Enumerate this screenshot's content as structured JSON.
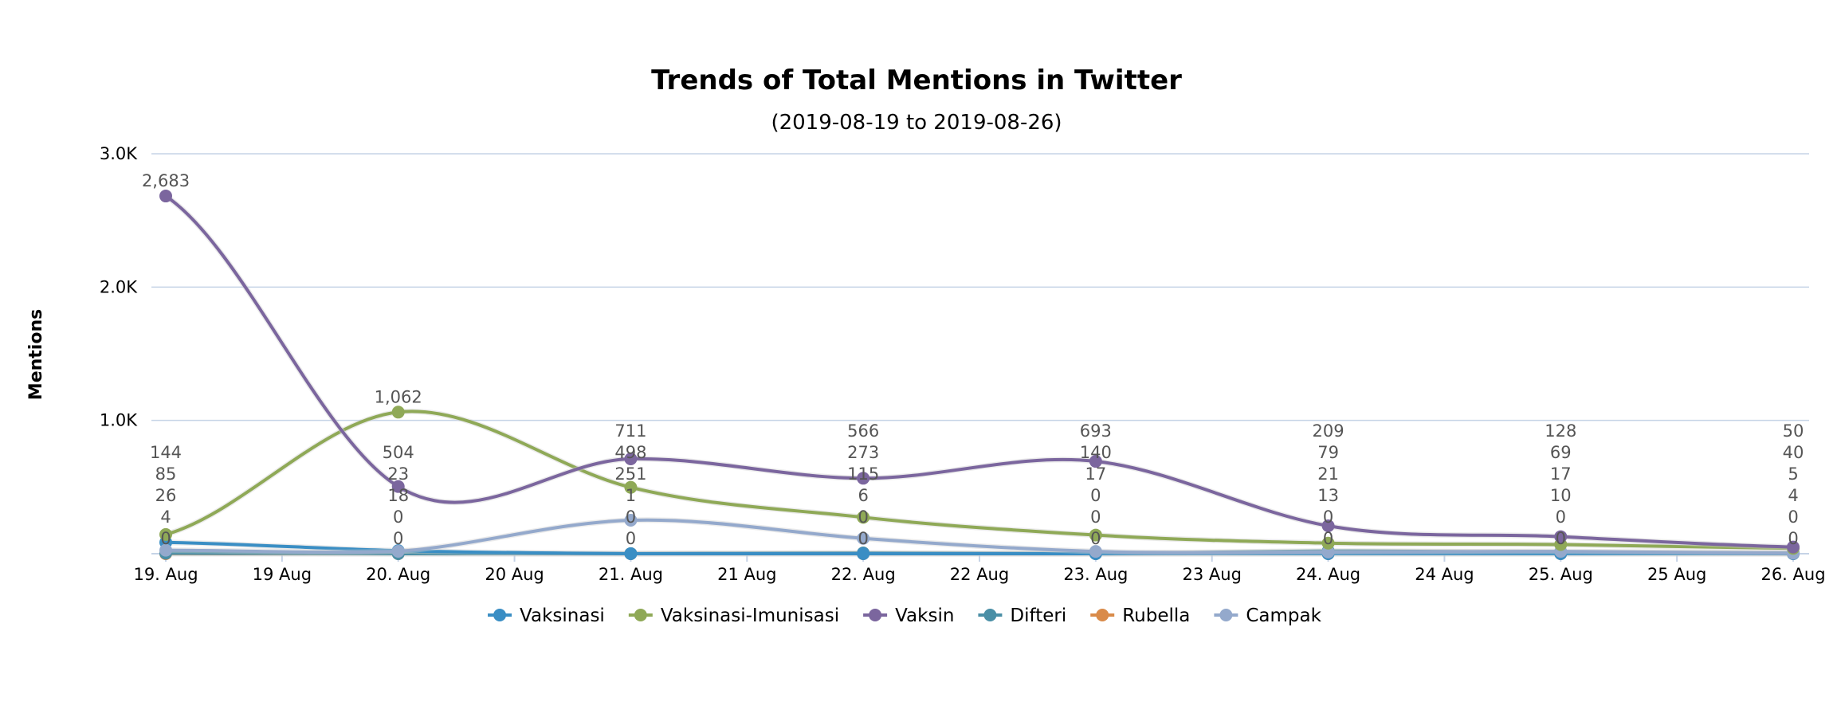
{
  "chart_data": {
    "type": "line",
    "title": "Trends of Total Mentions in Twitter",
    "subtitle": "(2019-08-19 to 2019-08-26)",
    "ylabel": "Mentions",
    "xlabel": "",
    "ylim": [
      0,
      3000
    ],
    "yticks": [
      {
        "value": 1000,
        "label": "1.0K"
      },
      {
        "value": 2000,
        "label": "2.0K"
      },
      {
        "value": 3000,
        "label": "3.0K"
      }
    ],
    "x_tick_labels": [
      "19. Aug",
      "19 Aug",
      "20. Aug",
      "20 Aug",
      "21. Aug",
      "21 Aug",
      "22. Aug",
      "22 Aug",
      "23. Aug",
      "23 Aug",
      "24. Aug",
      "24 Aug",
      "25. Aug",
      "25 Aug",
      "26. Aug"
    ],
    "categories": [
      "19. Aug",
      "20. Aug",
      "21. Aug",
      "22. Aug",
      "23. Aug",
      "24. Aug",
      "25. Aug",
      "26. Aug"
    ],
    "grid": true,
    "legend_position": "bottom-center",
    "series": [
      {
        "name": "Vaksinasi",
        "color": "#3a8ec4",
        "values": [
          85,
          23,
          0,
          0,
          0,
          0,
          0,
          0
        ]
      },
      {
        "name": "Vaksinasi-Imunisasi",
        "color": "#8fa957",
        "values": [
          144,
          1062,
          498,
          273,
          140,
          79,
          69,
          40
        ]
      },
      {
        "name": "Vaksin",
        "color": "#7b669e",
        "values": [
          2683,
          504,
          711,
          566,
          693,
          209,
          128,
          50
        ]
      },
      {
        "name": "Difteri",
        "color": "#4a8fa6",
        "values": [
          4,
          0,
          1,
          6,
          0,
          21,
          10,
          5
        ]
      },
      {
        "name": "Rubella",
        "color": "#d98b4a",
        "values": [
          0,
          0,
          0,
          0,
          0,
          0,
          0,
          0
        ]
      },
      {
        "name": "Campak",
        "color": "#94a9cc",
        "values": [
          26,
          18,
          251,
          115,
          17,
          13,
          17,
          4
        ]
      }
    ]
  }
}
